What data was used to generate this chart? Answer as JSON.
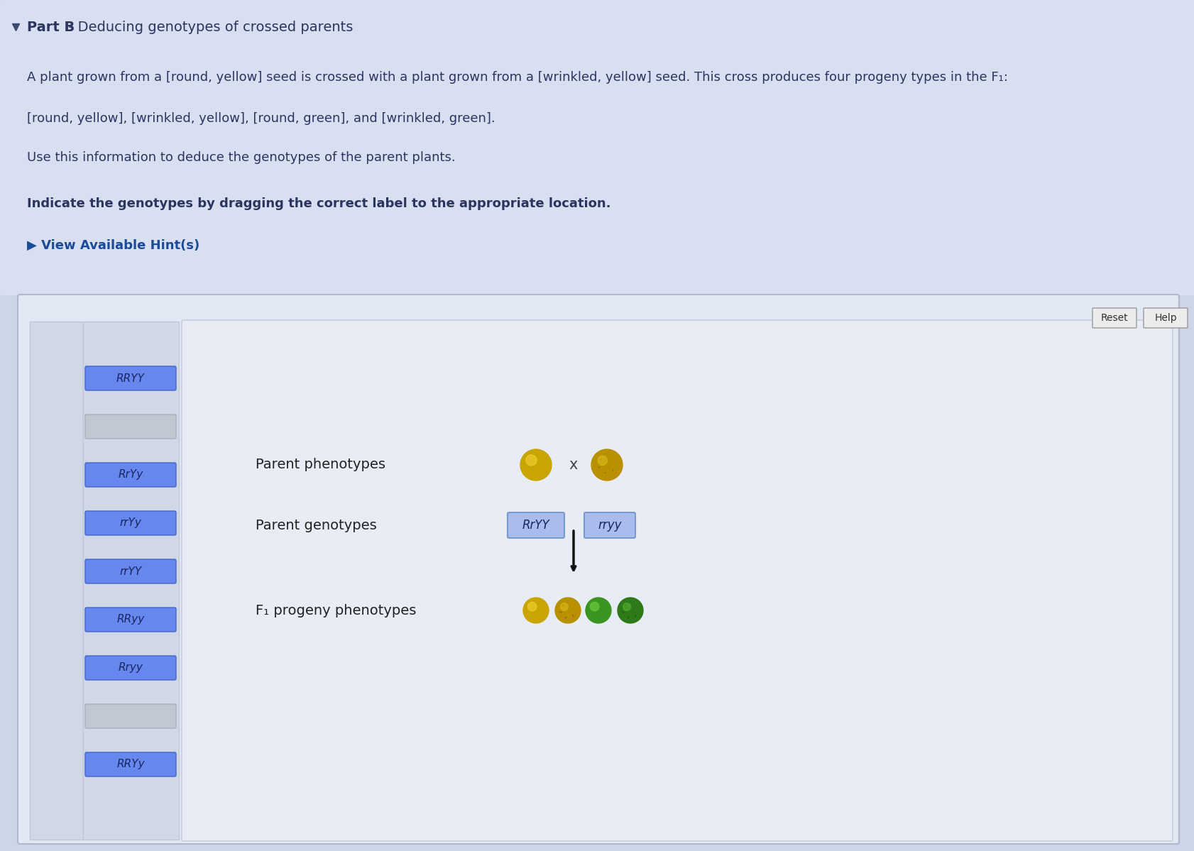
{
  "page_bg": "#cdd5e8",
  "top_bg": "#d8dff0",
  "box_bg": "#e2e8f4",
  "sidebar_bg": "#d0d8e8",
  "main_bg": "#e8ecf5",
  "btn_blue_face": "#6688ee",
  "btn_blue_edge": "#4466cc",
  "btn_blue_text": "#1a2560",
  "btn_gray_face": "#c0c8d4",
  "btn_gray_edge": "#a8b0bc",
  "genotype_btn_face": "#aabcee",
  "genotype_btn_edge": "#7799cc",
  "title_bold": "Part B",
  "title_rest": " - Deducing genotypes of crossed parents",
  "body_line1": "A plant grown from a [round, yellow] seed is crossed with a plant grown from a [wrinkled, yellow] seed. This cross produces four progeny types in the F₁:",
  "body_line2": "[round, yellow], [wrinkled, yellow], [round, green], and [wrinkled, green].",
  "body_line3": "Use this information to deduce the genotypes of the parent plants.",
  "bold_line": "Indicate the genotypes by dragging the correct label to the appropriate location.",
  "hint_text": "▶ View Available Hint(s)",
  "sidebar_labels": [
    "RRYY",
    "",
    "RrYy",
    "rrYy",
    "rrYY",
    "RRyy",
    "Rryy",
    "",
    "RRYy"
  ],
  "label_parent1": "RrYY",
  "label_parent2": "rryy",
  "parent_pheno_text": "Parent phenotypes",
  "parent_geno_text": "Parent genotypes",
  "f1_text": "F₁ progeny phenotypes",
  "reset_btn": "Reset",
  "help_btn": "Help",
  "text_color": "#2a3560",
  "hint_color": "#1a4a9a",
  "arrow_color": "#111111",
  "outer_edge": "#b0b8cc",
  "inner_edge": "#c0c8d8"
}
